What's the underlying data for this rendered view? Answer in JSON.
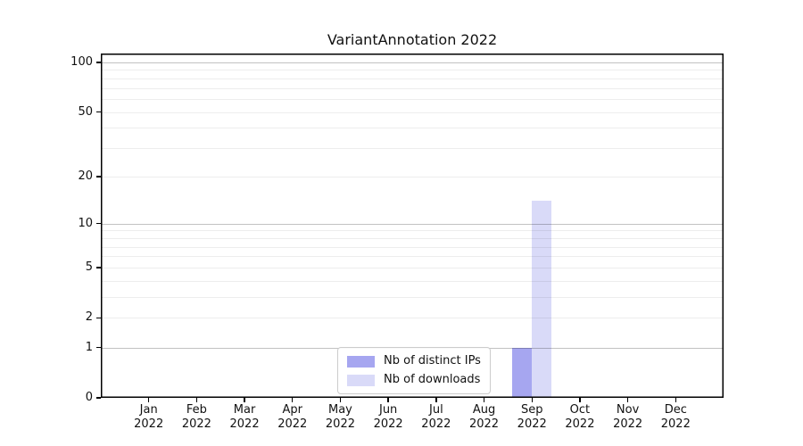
{
  "title": "VariantAnnotation 2022",
  "chart_data": {
    "type": "bar",
    "title": "VariantAnnotation 2022",
    "categories": [
      "Jan",
      "Feb",
      "Mar",
      "Apr",
      "May",
      "Jun",
      "Jul",
      "Aug",
      "Sep",
      "Oct",
      "Nov",
      "Dec"
    ],
    "category_year": "2022",
    "series": [
      {
        "name": "Nb of distinct IPs",
        "color": "#a6a6f0",
        "values": [
          0,
          0,
          0,
          0,
          0,
          0,
          0,
          0,
          1,
          0,
          0,
          0
        ]
      },
      {
        "name": "Nb of downloads",
        "color": "#d9daf8",
        "values": [
          0,
          0,
          0,
          0,
          0,
          0,
          0,
          0,
          14,
          0,
          0,
          0
        ]
      }
    ],
    "yscale": "log1p",
    "ylim": [
      0,
      100
    ],
    "ytick_values": [
      0,
      1,
      2,
      5,
      10,
      20,
      50,
      100
    ],
    "ytick_labels": [
      "0",
      "1",
      "2",
      "5",
      "10",
      "20",
      "50",
      "100"
    ],
    "major_grid_values": [
      1,
      10,
      100
    ],
    "minor_grid_values": [
      2,
      3,
      4,
      5,
      6,
      7,
      8,
      9,
      20,
      30,
      40,
      50,
      60,
      70,
      80,
      90
    ],
    "grid": true,
    "legend_position": "lower center"
  },
  "legend": {
    "items": [
      {
        "label": "Nb of distinct IPs",
        "color": "#a6a6f0"
      },
      {
        "label": "Nb of downloads",
        "color": "#d9daf8"
      }
    ]
  },
  "colors": {
    "background": "#ffffff",
    "axis": "#000000",
    "text": "#111111",
    "legend_border": "#cccccc"
  }
}
